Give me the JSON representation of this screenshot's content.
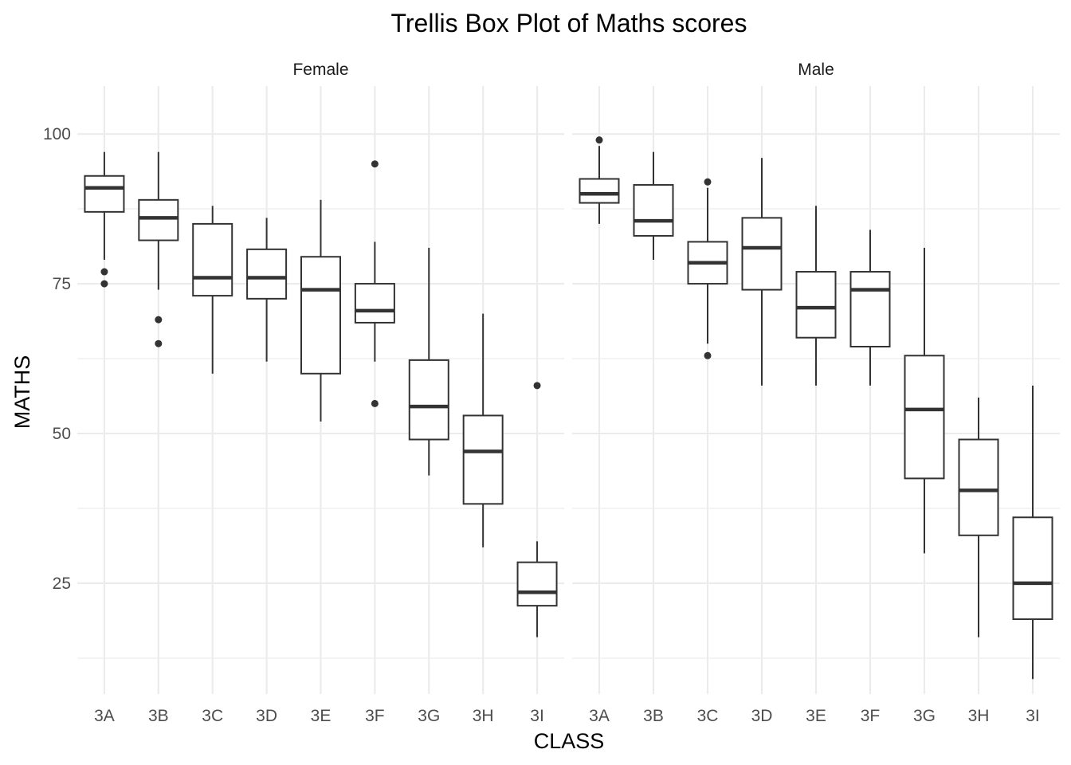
{
  "chart_data": {
    "type": "boxplot",
    "title": "Trellis Box Plot of Maths scores",
    "xlabel": "CLASS",
    "ylabel": "MATHS",
    "ylim": [
      6.5,
      108
    ],
    "yticks": [
      25,
      50,
      75,
      100
    ],
    "categories": [
      "3A",
      "3B",
      "3C",
      "3D",
      "3E",
      "3F",
      "3G",
      "3H",
      "3I"
    ],
    "grid": true,
    "panels": [
      {
        "name": "Female",
        "boxes": [
          {
            "cls": "3A",
            "lower_whisker": 79,
            "q1": 87,
            "median": 91,
            "q3": 93,
            "upper_whisker": 97,
            "outliers": [
              77,
              75
            ]
          },
          {
            "cls": "3B",
            "lower_whisker": 74,
            "q1": 82.25,
            "median": 86,
            "q3": 89,
            "upper_whisker": 97,
            "outliers": [
              69,
              65
            ]
          },
          {
            "cls": "3C",
            "lower_whisker": 60,
            "q1": 73,
            "median": 76,
            "q3": 85,
            "upper_whisker": 88,
            "outliers": []
          },
          {
            "cls": "3D",
            "lower_whisker": 62,
            "q1": 72.5,
            "median": 76,
            "q3": 80.75,
            "upper_whisker": 86,
            "outliers": []
          },
          {
            "cls": "3E",
            "lower_whisker": 52,
            "q1": 60,
            "median": 74,
            "q3": 79.5,
            "upper_whisker": 89,
            "outliers": []
          },
          {
            "cls": "3F",
            "lower_whisker": 62,
            "q1": 68.5,
            "median": 70.5,
            "q3": 75,
            "upper_whisker": 82,
            "outliers": [
              95,
              55
            ]
          },
          {
            "cls": "3G",
            "lower_whisker": 43,
            "q1": 49,
            "median": 54.5,
            "q3": 62.25,
            "upper_whisker": 81,
            "outliers": []
          },
          {
            "cls": "3H",
            "lower_whisker": 31,
            "q1": 38.25,
            "median": 47,
            "q3": 53,
            "upper_whisker": 70,
            "outliers": []
          },
          {
            "cls": "3I",
            "lower_whisker": 16,
            "q1": 21.25,
            "median": 23.5,
            "q3": 28.5,
            "upper_whisker": 32,
            "outliers": [
              58
            ]
          }
        ]
      },
      {
        "name": "Male",
        "boxes": [
          {
            "cls": "3A",
            "lower_whisker": 85,
            "q1": 88.5,
            "median": 90,
            "q3": 92.5,
            "upper_whisker": 98,
            "outliers": [
              99
            ]
          },
          {
            "cls": "3B",
            "lower_whisker": 79,
            "q1": 83,
            "median": 85.5,
            "q3": 91.5,
            "upper_whisker": 97,
            "outliers": []
          },
          {
            "cls": "3C",
            "lower_whisker": 65,
            "q1": 75,
            "median": 78.5,
            "q3": 82,
            "upper_whisker": 91,
            "outliers": [
              92,
              63
            ]
          },
          {
            "cls": "3D",
            "lower_whisker": 58,
            "q1": 74,
            "median": 81,
            "q3": 86,
            "upper_whisker": 96,
            "outliers": []
          },
          {
            "cls": "3E",
            "lower_whisker": 58,
            "q1": 66,
            "median": 71,
            "q3": 77,
            "upper_whisker": 88,
            "outliers": []
          },
          {
            "cls": "3F",
            "lower_whisker": 58,
            "q1": 64.5,
            "median": 74,
            "q3": 77,
            "upper_whisker": 84,
            "outliers": []
          },
          {
            "cls": "3G",
            "lower_whisker": 30,
            "q1": 42.5,
            "median": 54,
            "q3": 63,
            "upper_whisker": 81,
            "outliers": []
          },
          {
            "cls": "3H",
            "lower_whisker": 16,
            "q1": 33,
            "median": 40.5,
            "q3": 49,
            "upper_whisker": 56,
            "outliers": []
          },
          {
            "cls": "3I",
            "lower_whisker": 9,
            "q1": 19,
            "median": 25,
            "q3": 36,
            "upper_whisker": 58,
            "outliers": []
          }
        ]
      }
    ]
  }
}
